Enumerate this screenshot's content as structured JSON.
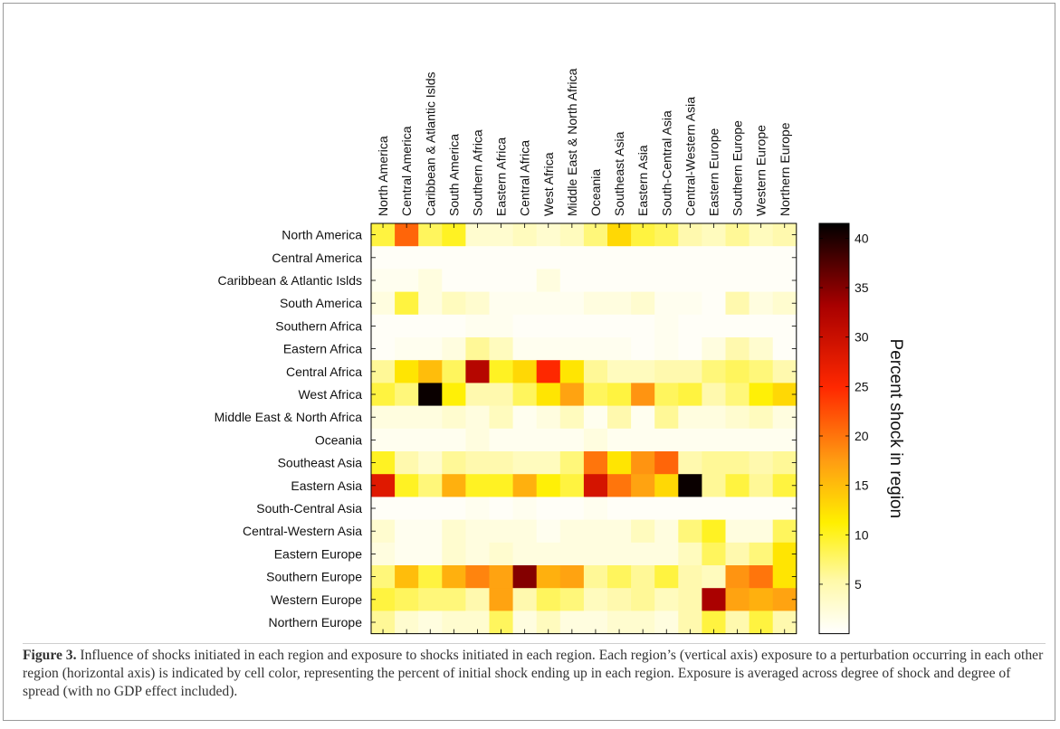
{
  "caption": {
    "label": "Figure 3.",
    "text": " Influence of shocks initiated in each region and exposure to shocks initiated in each region. Each region’s (vertical axis) exposure to a perturbation occurring in each other region (horizontal axis) is indicated by cell color, representing the percent of initial shock ending up in each region. Exposure is averaged across degree of shock and degree of spread (with no GDP effect included)."
  },
  "chart_data": {
    "type": "heatmap",
    "title": "",
    "xlabel": "",
    "ylabel": "",
    "x_categories": [
      "North America",
      "Central America",
      "Caribbean & Atlantic Islds",
      "South America",
      "Southern Africa",
      "Eastern Africa",
      "Central Africa",
      "West Africa",
      "Middle East & North Africa",
      "Oceania",
      "Southeast Asia",
      "Eastern Asia",
      "South-Central Asia",
      "Central-Western Asia",
      "Eastern Europe",
      "Southern Europe",
      "Western Europe",
      "Northern Europe"
    ],
    "y_categories": [
      "North America",
      "Central America",
      "Caribbean & Atlantic Islds",
      "South America",
      "Southern Africa",
      "Eastern Africa",
      "Central Africa",
      "West Africa",
      "Middle East & North Africa",
      "Oceania",
      "Southeast Asia",
      "Eastern Asia",
      "South-Central Asia",
      "Central-Western Asia",
      "Eastern Europe",
      "Southern Europe",
      "Western Europe",
      "Northern Europe"
    ],
    "values": [
      [
        9,
        21,
        8,
        10,
        3,
        3,
        4,
        3,
        4,
        7,
        13,
        9,
        8,
        5,
        4,
        6,
        4,
        5
      ],
      [
        0.5,
        0.5,
        0.5,
        0.5,
        0.5,
        0.5,
        0.5,
        0.5,
        0.5,
        0.5,
        0.5,
        0.5,
        0.5,
        0.5,
        0.5,
        0.5,
        0.5,
        0.5
      ],
      [
        1,
        1,
        2,
        0.5,
        0.5,
        0.5,
        0.5,
        2,
        0.5,
        0.5,
        0.5,
        0.5,
        0.5,
        0.5,
        0.5,
        0.5,
        0.5,
        0.5
      ],
      [
        2,
        9,
        2,
        4,
        3,
        1,
        1,
        1,
        1,
        2,
        2,
        3,
        1,
        1,
        0.5,
        5,
        2,
        3
      ],
      [
        0.5,
        0.5,
        0.5,
        0.5,
        1,
        1,
        0.5,
        0.5,
        0.5,
        0.5,
        0.5,
        0.5,
        1,
        0.5,
        0.5,
        0.5,
        0.5,
        0.5
      ],
      [
        0.5,
        1,
        1,
        2,
        6,
        4,
        1,
        1,
        1,
        1,
        1,
        0.5,
        1,
        0.5,
        2,
        5,
        3,
        0.5
      ],
      [
        6,
        12,
        15,
        8,
        32,
        10,
        13,
        25,
        12,
        6,
        4,
        4,
        5,
        5,
        7,
        8,
        7,
        5
      ],
      [
        9,
        7,
        41,
        11,
        5,
        5,
        8,
        12,
        17,
        8,
        9,
        18,
        8,
        9,
        5,
        7,
        11,
        13
      ],
      [
        2,
        2,
        2,
        3,
        2,
        4,
        1,
        2,
        4,
        1,
        5,
        1,
        6,
        2,
        2,
        3,
        4,
        2
      ],
      [
        1,
        1,
        1,
        1,
        2,
        1,
        1,
        1,
        1,
        2,
        1,
        1,
        1,
        1,
        1,
        1,
        1,
        1
      ],
      [
        10,
        5,
        3,
        6,
        5,
        5,
        4,
        4,
        7,
        20,
        12,
        18,
        21,
        5,
        6,
        6,
        5,
        6
      ],
      [
        28,
        10,
        7,
        16,
        10,
        10,
        16,
        11,
        9,
        29,
        20,
        17,
        13,
        41,
        6,
        9,
        6,
        9
      ],
      [
        0.5,
        0.5,
        0.5,
        0.5,
        1,
        0.5,
        1,
        0.5,
        0.5,
        1,
        0.5,
        0.5,
        0.5,
        0.5,
        0.5,
        0.5,
        0.5,
        0.5
      ],
      [
        3,
        1,
        1,
        3,
        2,
        2,
        2,
        1,
        2,
        2,
        2,
        4,
        2,
        7,
        10,
        2,
        2,
        8
      ],
      [
        2,
        1,
        1,
        3,
        2,
        3,
        2,
        2,
        2,
        2,
        2,
        2,
        2,
        4,
        8,
        5,
        7,
        12
      ],
      [
        7,
        15,
        9,
        16,
        19,
        17,
        35,
        16,
        17,
        6,
        8,
        6,
        9,
        5,
        4,
        18,
        20,
        12
      ],
      [
        9,
        8,
        7,
        7,
        5,
        17,
        5,
        8,
        7,
        4,
        5,
        6,
        4,
        5,
        33,
        17,
        16,
        17
      ],
      [
        6,
        3,
        2,
        3,
        3,
        8,
        2,
        4,
        2,
        2,
        3,
        3,
        2,
        5,
        9,
        5,
        9,
        5
      ]
    ],
    "colorbar": {
      "label": "Percent shock in region",
      "ticks": [
        5,
        10,
        15,
        20,
        25,
        30,
        35,
        40
      ],
      "range": [
        0,
        41.5
      ],
      "colormap": "hot (reversed): white → yellow → orange → red → black"
    },
    "grid": false,
    "legend": "colorbar right"
  }
}
